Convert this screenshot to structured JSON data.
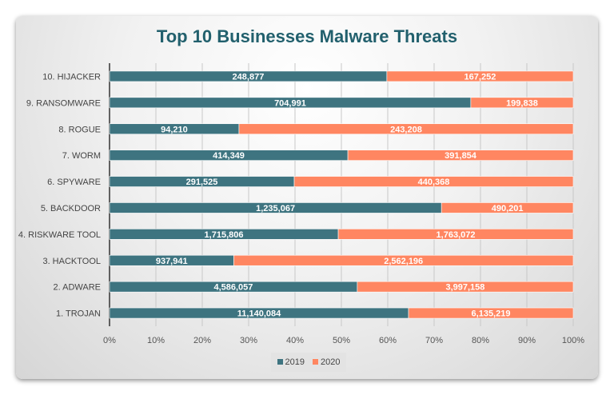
{
  "chart_data": {
    "type": "bar",
    "orientation": "horizontal",
    "stacked": "percent",
    "title": "Top 10 Businesses Malware Threats",
    "categories": [
      "1. TROJAN",
      "2. ADWARE",
      "3. HACKTOOL",
      "4. RISKWARE TOOL",
      "5. BACKDOOR",
      "6. SPYWARE",
      "7. WORM",
      "8. ROGUE",
      "9. RANSOMWARE",
      "10. HIJACKER"
    ],
    "series": [
      {
        "name": "2019",
        "color": "#3e7480",
        "values": [
          11140084,
          4586057,
          937941,
          1715806,
          1235067,
          291525,
          414349,
          94210,
          704991,
          248877
        ],
        "labels": [
          "11,140,084",
          "4,586,057",
          "937,941",
          "1,715,806",
          "1,235,067",
          "291,525",
          "414,349",
          "94,210",
          "704,991",
          "248,877"
        ]
      },
      {
        "name": "2020",
        "color": "#ff8661",
        "values": [
          6135219,
          3997158,
          2562196,
          1763072,
          490201,
          440368,
          391854,
          243208,
          199838,
          167252
        ],
        "labels": [
          "6,135,219",
          "3,997,158",
          "2,562,196",
          "1,763,072",
          "490,201",
          "440,368",
          "391,854",
          "243,208",
          "199,838",
          "167,252"
        ]
      }
    ],
    "xlim": [
      0,
      100
    ],
    "xticks": [
      "0%",
      "10%",
      "20%",
      "30%",
      "40%",
      "50%",
      "60%",
      "70%",
      "80%",
      "90%",
      "100%"
    ],
    "grid": true,
    "legend": "bottom"
  }
}
